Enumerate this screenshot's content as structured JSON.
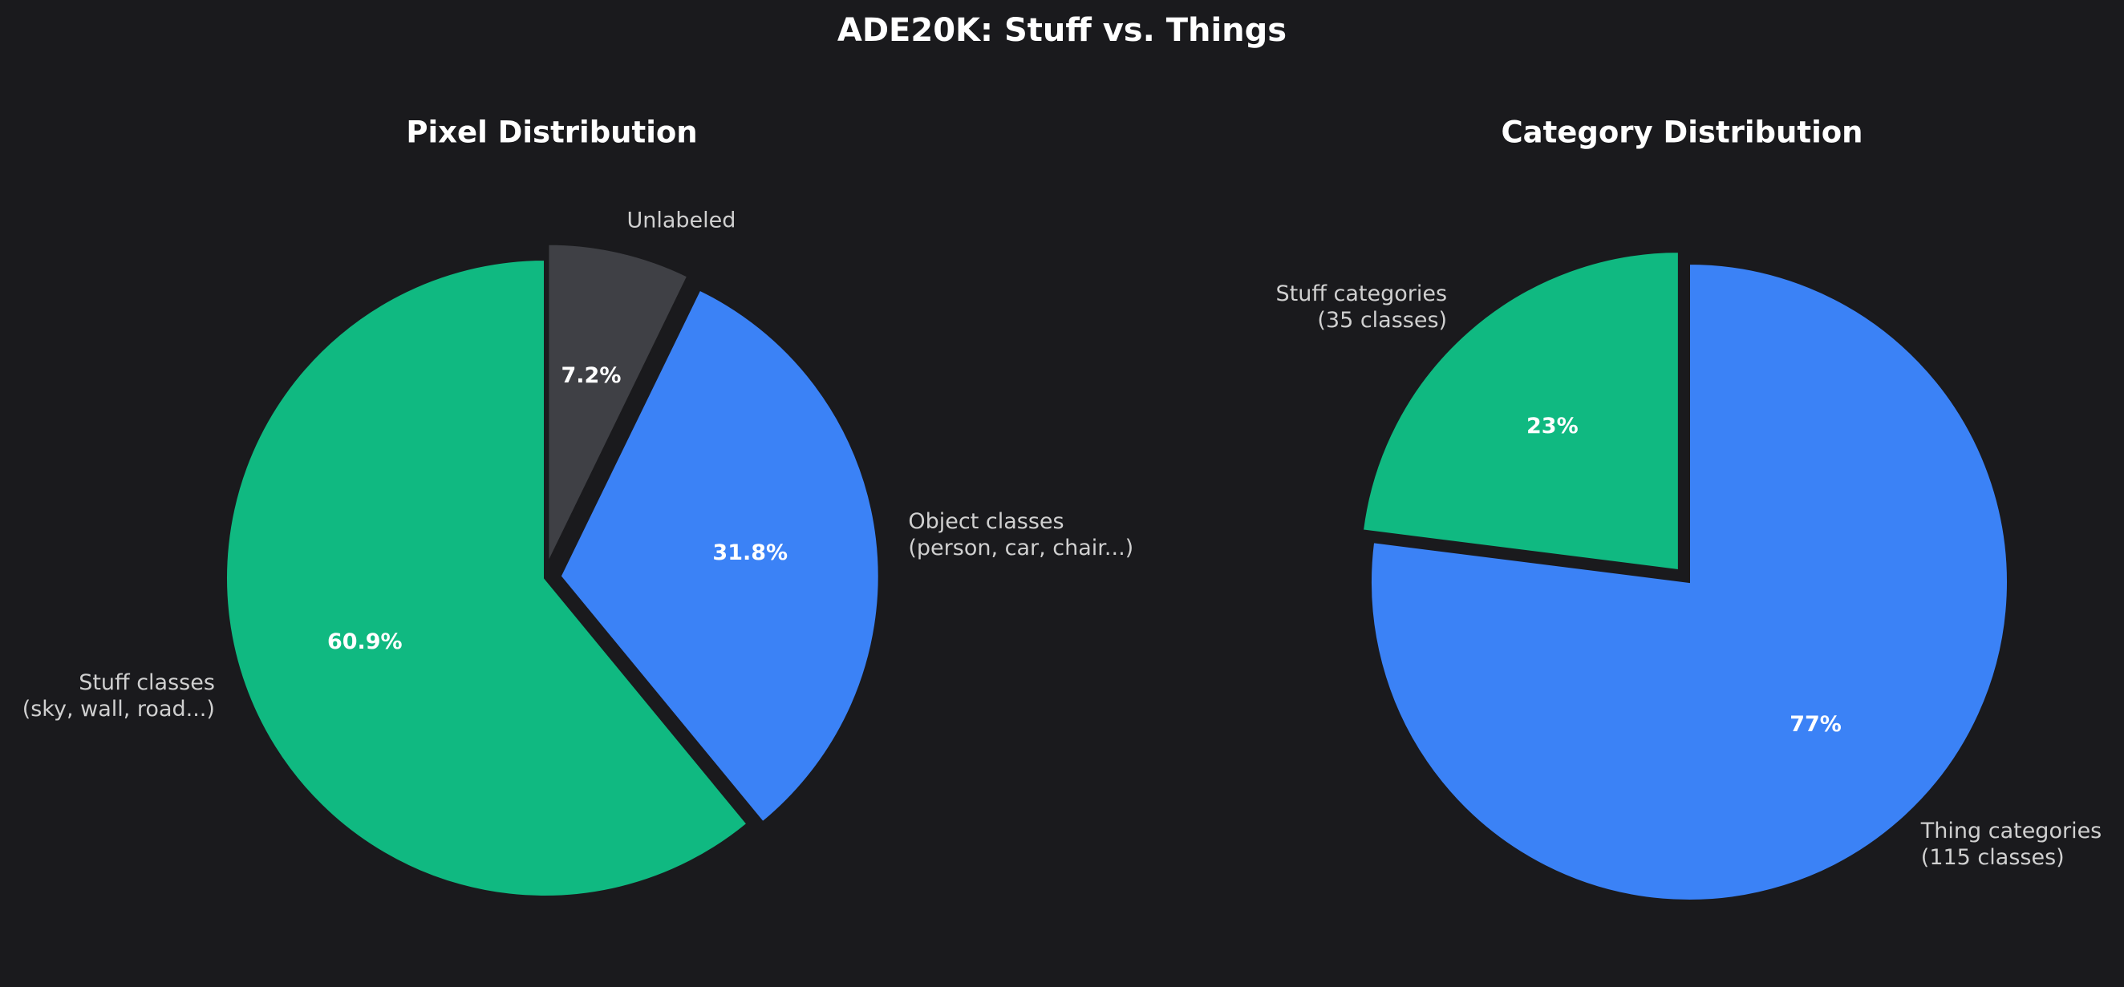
{
  "title": "ADE20K: Stuff vs. Things",
  "chart_data": [
    {
      "type": "pie",
      "title": "Pixel Distribution",
      "categories": [
        "Stuff classes\n(sky, wall, road...)",
        "Object classes\n(person, car, chair...)",
        "Unlabeled"
      ],
      "values": [
        60.9,
        31.8,
        7.2
      ],
      "value_labels": [
        "60.9%",
        "31.8%",
        "7.2%"
      ],
      "colors": [
        "#10b981",
        "#3b82f6",
        "#3f4045"
      ],
      "explode": [
        0,
        0.05,
        0.05
      ]
    },
    {
      "type": "pie",
      "title": "Category Distribution",
      "categories": [
        "Stuff categories\n(35 classes)",
        "Thing categories\n(115 classes)"
      ],
      "values": [
        23,
        77
      ],
      "value_labels": [
        "23%",
        "77%"
      ],
      "colors": [
        "#10b981",
        "#3b82f6"
      ],
      "explode": [
        0.05,
        0
      ]
    }
  ]
}
